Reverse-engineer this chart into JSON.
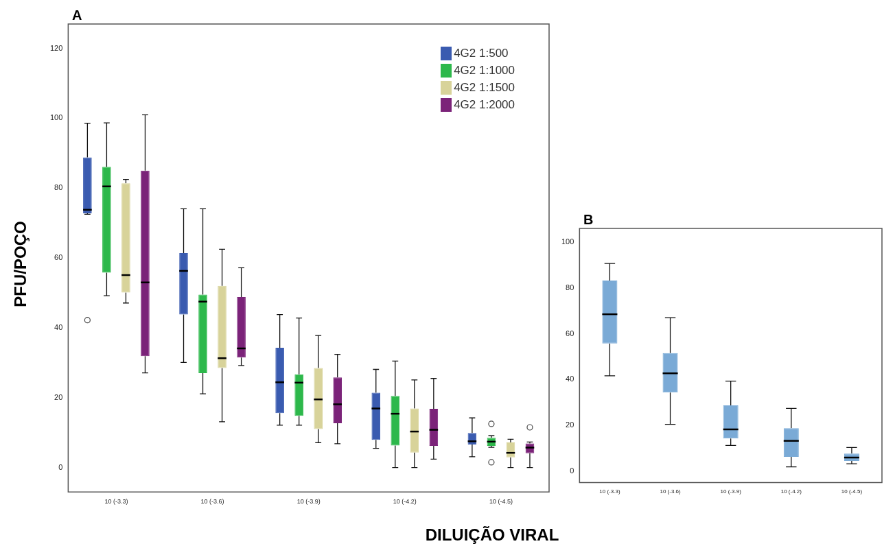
{
  "chart_data": [
    {
      "type": "box",
      "title": "A",
      "ylabel": "PFU/POÇO",
      "xlabel": "DILUIÇÃO VIRAL",
      "categories": [
        "10 (-3.3)",
        "10 (-3.6)",
        "10 (-3.9)",
        "10 (-4.2)",
        "10 (-4.5)"
      ],
      "ylim": [
        -7,
        127
      ],
      "yticks": [
        0,
        20,
        40,
        60,
        80,
        100,
        120
      ],
      "legend": "top right",
      "series": [
        {
          "name": "4G2 1:500",
          "color": "#3a5bb0",
          "boxes": [
            {
              "low": 72.5,
              "q1": 72.8,
              "median": 73.8,
              "q3": 88.8,
              "high": 98.6,
              "outliers": [
                42.2
              ]
            },
            {
              "low": 30.1,
              "q1": 43.8,
              "median": 56.3,
              "q3": 61.4,
              "high": 74.1
            },
            {
              "low": 12.1,
              "q1": 15.6,
              "median": 24.4,
              "q3": 34.3,
              "high": 43.8
            },
            {
              "low": 5.5,
              "q1": 7.9,
              "median": 16.9,
              "q3": 21.4,
              "high": 28.1
            },
            {
              "low": 3.1,
              "q1": 6.6,
              "median": 7.5,
              "q3": 9.9,
              "high": 14.2
            }
          ]
        },
        {
          "name": "4G2 1:1000",
          "color": "#2db84b",
          "boxes": [
            {
              "low": 49.2,
              "q1": 55.8,
              "median": 80.5,
              "q3": 86.1,
              "high": 98.7
            },
            {
              "low": 21.1,
              "q1": 27.0,
              "median": 47.5,
              "q3": 49.5,
              "high": 74.1
            },
            {
              "low": 12.1,
              "q1": 14.8,
              "median": 24.3,
              "q3": 26.7,
              "high": 42.8
            },
            {
              "low": 0,
              "q1": 6.3,
              "median": 15.4,
              "q3": 20.5,
              "high": 30.5
            },
            {
              "low": 5.8,
              "q1": 6.2,
              "median": 7.4,
              "q3": 8.5,
              "high": 9.1,
              "outliers": [
                12.5,
                1.5
              ]
            }
          ]
        },
        {
          "name": "4G2 1:1500",
          "color": "#d8d39a",
          "boxes": [
            {
              "low": 47.1,
              "q1": 50.1,
              "median": 55.1,
              "q3": 81.4,
              "high": 82.5
            },
            {
              "low": 13.1,
              "q1": 28.5,
              "median": 31.3,
              "q3": 52.0,
              "high": 62.5
            },
            {
              "low": 7.1,
              "q1": 11.0,
              "median": 19.5,
              "q3": 28.5,
              "high": 37.8
            },
            {
              "low": 0,
              "q1": 4.3,
              "median": 10.3,
              "q3": 16.9,
              "high": 25.1
            },
            {
              "low": 0,
              "q1": 2.9,
              "median": 4.2,
              "q3": 7.2,
              "high": 8.1
            }
          ]
        },
        {
          "name": "4G2 1:2000",
          "color": "#7b2379",
          "boxes": [
            {
              "low": 27.1,
              "q1": 31.9,
              "median": 53.0,
              "q3": 85.0,
              "high": 101.0
            },
            {
              "low": 29.2,
              "q1": 31.5,
              "median": 34.1,
              "q3": 48.8,
              "high": 57.2
            },
            {
              "low": 6.8,
              "q1": 12.7,
              "median": 18.1,
              "q3": 25.8,
              "high": 32.4
            },
            {
              "low": 2.4,
              "q1": 6.2,
              "median": 10.8,
              "q3": 16.8,
              "high": 25.5
            },
            {
              "low": 0,
              "q1": 4.1,
              "median": 5.7,
              "q3": 6.9,
              "high": 7.3,
              "outliers": [
                11.5
              ]
            }
          ]
        }
      ]
    },
    {
      "type": "box",
      "title": "B",
      "categories": [
        "10 (-3.3)",
        "10 (-3.6)",
        "10 (-3.9)",
        "10 (-4.2)",
        "10 (-4.5)"
      ],
      "ylim": [
        -5,
        106
      ],
      "yticks": [
        0,
        20,
        40,
        60,
        80,
        100
      ],
      "series": [
        {
          "color": "#7aaad6",
          "boxes": [
            {
              "low": 41.6,
              "q1": 55.7,
              "median": 68.5,
              "q3": 83.2,
              "high": 90.7
            },
            {
              "low": 20.4,
              "q1": 34.3,
              "median": 42.7,
              "q3": 51.5,
              "high": 67.0
            },
            {
              "low": 11.2,
              "q1": 14.2,
              "median": 18.2,
              "q3": 28.7,
              "high": 39.3
            },
            {
              "low": 1.8,
              "q1": 6.2,
              "median": 13.2,
              "q3": 18.7,
              "high": 27.4
            },
            {
              "low": 3.2,
              "q1": 4.4,
              "median": 5.9,
              "q3": 7.6,
              "high": 10.3
            }
          ]
        }
      ]
    }
  ]
}
